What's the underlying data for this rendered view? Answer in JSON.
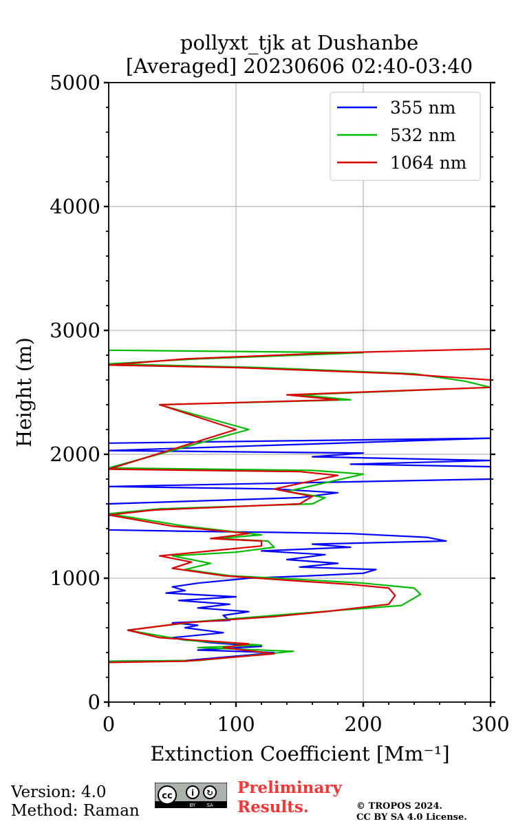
{
  "chart_data": {
    "type": "line",
    "title": "pollyxt_tjk at Dushanbe",
    "subtitle": "[Averaged] 20230606 02:40-03:40",
    "xlabel": "Extinction Coefficient [Mm⁻¹]",
    "ylabel": "Height (m)",
    "xlim": [
      0,
      300
    ],
    "ylim": [
      0,
      5000
    ],
    "xticks": [
      0,
      100,
      200,
      300
    ],
    "yticks": [
      0,
      1000,
      2000,
      3000,
      4000,
      5000
    ],
    "grid": true,
    "legend_position": "top-right",
    "series": [
      {
        "name": "355 nm",
        "color": "#0000ff",
        "points": [
          [
            0,
            330
          ],
          [
            60,
            335
          ],
          [
            110,
            380
          ],
          [
            130,
            400
          ],
          [
            70,
            420
          ],
          [
            120,
            450
          ],
          [
            80,
            480
          ],
          [
            50,
            520
          ],
          [
            90,
            560
          ],
          [
            60,
            600
          ],
          [
            70,
            620
          ],
          [
            50,
            640
          ],
          [
            95,
            660
          ],
          [
            90,
            700
          ],
          [
            110,
            730
          ],
          [
            70,
            760
          ],
          [
            95,
            790
          ],
          [
            55,
            820
          ],
          [
            100,
            850
          ],
          [
            45,
            880
          ],
          [
            60,
            900
          ],
          [
            50,
            930
          ],
          [
            70,
            960
          ],
          [
            110,
            1000
          ],
          [
            160,
            1020
          ],
          [
            200,
            1040
          ],
          [
            210,
            1070
          ],
          [
            150,
            1090
          ],
          [
            180,
            1120
          ],
          [
            140,
            1150
          ],
          [
            170,
            1190
          ],
          [
            120,
            1220
          ],
          [
            190,
            1250
          ],
          [
            160,
            1275
          ],
          [
            265,
            1300
          ],
          [
            250,
            1330
          ],
          [
            190,
            1360
          ],
          [
            130,
            1370
          ],
          [
            55,
            1380
          ],
          [
            0,
            1390
          ],
          [
            0,
            1600
          ],
          [
            150,
            1650
          ],
          [
            180,
            1690
          ],
          [
            130,
            1720
          ],
          [
            0,
            1740
          ],
          [
            300,
            1800
          ],
          [
            300,
            1900
          ],
          [
            190,
            1920
          ],
          [
            300,
            1950
          ],
          [
            160,
            1980
          ],
          [
            200,
            2010
          ],
          [
            0,
            2030
          ],
          [
            300,
            2130
          ],
          [
            0,
            2090
          ]
        ]
      },
      {
        "name": "532 nm",
        "color": "#00bb00",
        "points": [
          [
            0,
            330
          ],
          [
            70,
            335
          ],
          [
            145,
            410
          ],
          [
            70,
            440
          ],
          [
            120,
            460
          ],
          [
            60,
            500
          ],
          [
            15,
            580
          ],
          [
            70,
            650
          ],
          [
            130,
            700
          ],
          [
            180,
            740
          ],
          [
            230,
            780
          ],
          [
            245,
            870
          ],
          [
            240,
            920
          ],
          [
            200,
            960
          ],
          [
            150,
            990
          ],
          [
            95,
            1020
          ],
          [
            60,
            1070
          ],
          [
            80,
            1120
          ],
          [
            50,
            1180
          ],
          [
            100,
            1210
          ],
          [
            130,
            1250
          ],
          [
            125,
            1300
          ],
          [
            85,
            1320
          ],
          [
            120,
            1350
          ],
          [
            60,
            1420
          ],
          [
            0,
            1520
          ],
          [
            40,
            1560
          ],
          [
            160,
            1600
          ],
          [
            170,
            1650
          ],
          [
            140,
            1700
          ],
          [
            200,
            1840
          ],
          [
            160,
            1870
          ],
          [
            0,
            1890
          ],
          [
            110,
            2200
          ],
          [
            40,
            2400
          ],
          [
            190,
            2440
          ],
          [
            150,
            2480
          ],
          [
            300,
            2540
          ],
          [
            280,
            2590
          ],
          [
            240,
            2650
          ],
          [
            120,
            2700
          ],
          [
            0,
            2730
          ],
          [
            70,
            2770
          ],
          [
            200,
            2820
          ],
          [
            0,
            2840
          ]
        ]
      },
      {
        "name": "1064 nm",
        "color": "#dd0000",
        "points": [
          [
            0,
            320
          ],
          [
            60,
            330
          ],
          [
            130,
            390
          ],
          [
            90,
            440
          ],
          [
            110,
            470
          ],
          [
            40,
            520
          ],
          [
            15,
            580
          ],
          [
            60,
            640
          ],
          [
            130,
            690
          ],
          [
            170,
            730
          ],
          [
            220,
            790
          ],
          [
            225,
            860
          ],
          [
            220,
            920
          ],
          [
            190,
            950
          ],
          [
            145,
            980
          ],
          [
            90,
            1020
          ],
          [
            50,
            1080
          ],
          [
            65,
            1130
          ],
          [
            40,
            1180
          ],
          [
            80,
            1220
          ],
          [
            120,
            1260
          ],
          [
            120,
            1300
          ],
          [
            80,
            1320
          ],
          [
            110,
            1360
          ],
          [
            50,
            1420
          ],
          [
            0,
            1510
          ],
          [
            35,
            1550
          ],
          [
            150,
            1600
          ],
          [
            160,
            1660
          ],
          [
            130,
            1720
          ],
          [
            180,
            1830
          ],
          [
            150,
            1860
          ],
          [
            0,
            1880
          ],
          [
            100,
            2200
          ],
          [
            40,
            2400
          ],
          [
            180,
            2440
          ],
          [
            140,
            2480
          ],
          [
            300,
            2540
          ],
          [
            300,
            2600
          ],
          [
            230,
            2650
          ],
          [
            100,
            2700
          ],
          [
            0,
            2720
          ],
          [
            60,
            2770
          ],
          [
            180,
            2820
          ],
          [
            300,
            2850
          ]
        ]
      }
    ]
  },
  "footer": {
    "version": "Version: 4.0",
    "method": "Method: Raman",
    "preliminary_1": "Preliminary",
    "preliminary_2": "Results.",
    "copyright_1": "© TROPOS 2024.",
    "copyright_2": "CC BY SA 4.0 License.",
    "badge_by": "BY",
    "badge_sa": "SA"
  }
}
